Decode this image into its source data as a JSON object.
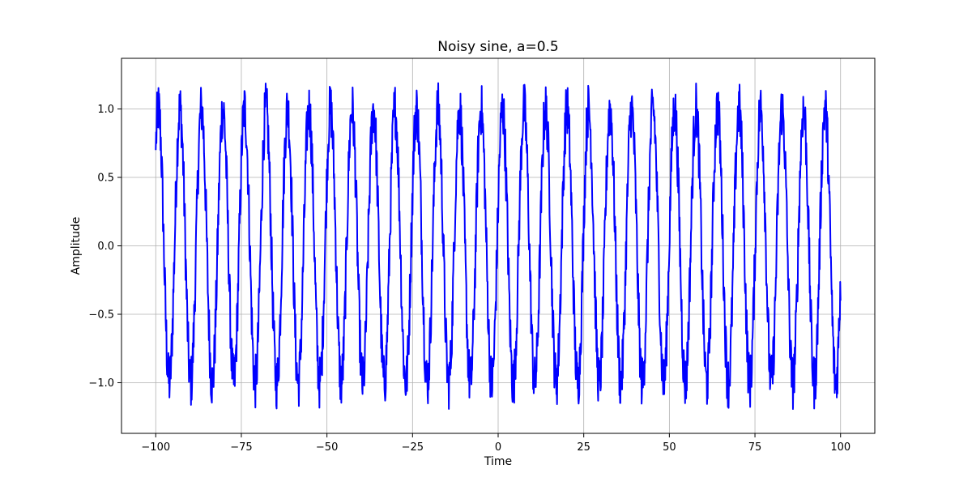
{
  "chart_data": {
    "type": "line",
    "title": "Noisy sine, a=0.5",
    "xlabel": "Time",
    "ylabel": "Amplitude",
    "xlim": [
      -110,
      110
    ],
    "ylim": [
      -1.37,
      1.37
    ],
    "xticks": [
      -100,
      -75,
      -50,
      -25,
      0,
      25,
      50,
      75,
      100
    ],
    "yticks": [
      -1.0,
      -0.5,
      0.0,
      0.5,
      1.0
    ],
    "xtick_labels": [
      "−100",
      "−75",
      "−50",
      "−25",
      "0",
      "25",
      "50",
      "75",
      "100"
    ],
    "ytick_labels": [
      "−1.0",
      "−0.5",
      "0.0",
      "0.5",
      "1.0"
    ],
    "grid": true,
    "series": [
      {
        "color": "#0000ff",
        "x_range": [
          -100,
          100
        ],
        "period": 6.28,
        "amplitude": 1.0,
        "noise_amplitude": 0.2,
        "first_value": 0.7,
        "last_value": -0.4
      }
    ]
  }
}
